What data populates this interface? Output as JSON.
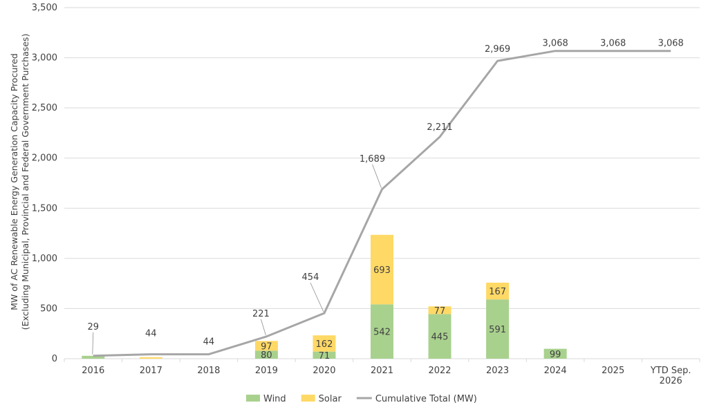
{
  "chart_data": {
    "type": "bar",
    "subtype": "stacked bar with cumulative line",
    "ylabel_line1": "MW of AC Renewable Energy Generation Capacity Procured",
    "ylabel_line2": "(Excluding Municipal, Provincial and Federal Government Purchases)",
    "ylim": [
      0,
      3500
    ],
    "ytick_labels": [
      "0",
      "500",
      "1,000",
      "1,500",
      "2,000",
      "2,500",
      "3,000",
      "3,500"
    ],
    "ytick_values": [
      0,
      500,
      1000,
      1500,
      2000,
      2500,
      3000,
      3500
    ],
    "categories": [
      "2016",
      "2017",
      "2018",
      "2019",
      "2020",
      "2021",
      "2022",
      "2023",
      "2024",
      "2025",
      "YTD Sep. 2026"
    ],
    "category_lines": [
      [
        "2016"
      ],
      [
        "2017"
      ],
      [
        "2018"
      ],
      [
        "2019"
      ],
      [
        "2020"
      ],
      [
        "2021"
      ],
      [
        "2022"
      ],
      [
        "2023"
      ],
      [
        "2024"
      ],
      [
        "2025"
      ],
      [
        "YTD Sep.",
        "2026"
      ]
    ],
    "grid": true,
    "legend_position": "bottom",
    "series": [
      {
        "name": "Wind",
        "color": "#a9d18e",
        "values": [
          29,
          0,
          0,
          80,
          71,
          542,
          445,
          591,
          99,
          0,
          0
        ],
        "labels": [
          "",
          "",
          "",
          "80",
          "71",
          "542",
          "445",
          "591",
          "99",
          "",
          ""
        ]
      },
      {
        "name": "Solar",
        "color": "#ffd966",
        "values": [
          0,
          15,
          0,
          97,
          162,
          693,
          77,
          167,
          0,
          0,
          0
        ],
        "labels": [
          "",
          "",
          "",
          "97",
          "162",
          "693",
          "77",
          "167",
          "",
          "",
          ""
        ]
      }
    ],
    "line_series": {
      "name": "Cumulative Total (MW)",
      "color": "#a6a6a6",
      "values": [
        29,
        44,
        44,
        221,
        454,
        1689,
        2211,
        2969,
        3068,
        3068,
        3068
      ],
      "labels": [
        "29",
        "44",
        "44",
        "221",
        "454",
        "1,689",
        "2,211",
        "2,969",
        "3,068",
        "3,068",
        "3,068"
      ]
    }
  }
}
